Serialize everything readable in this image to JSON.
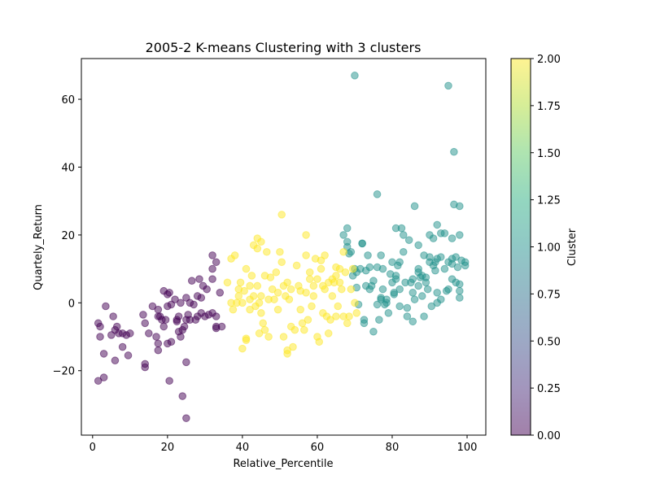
{
  "chart_data": {
    "type": "scatter",
    "title": "2005-2 K-means Clustering with 3 clusters",
    "xlabel": "Relative_Percentile",
    "ylabel": "Quartely_Return",
    "xlim": [
      -3,
      105
    ],
    "ylim": [
      -39,
      72
    ],
    "x_ticks": [
      0,
      20,
      40,
      60,
      80,
      100
    ],
    "x_tick_labels": [
      "0",
      "20",
      "40",
      "60",
      "80",
      "100"
    ],
    "y_ticks": [
      -20,
      0,
      20,
      40,
      60
    ],
    "y_tick_labels": [
      "−20",
      "0",
      "20",
      "40",
      "60"
    ],
    "grid": false,
    "marker_alpha": 0.5,
    "colorbar": {
      "label": "Cluster",
      "range": [
        0,
        2
      ],
      "ticks": [
        0,
        0.25,
        0.5,
        0.75,
        1.0,
        1.25,
        1.5,
        1.75,
        2.0
      ],
      "tick_labels": [
        "0.00",
        "0.25",
        "0.50",
        "0.75",
        "1.00",
        "1.25",
        "1.50",
        "1.75",
        "2.00"
      ],
      "colormap": "viridis",
      "colors": [
        "#440154",
        "#3b528b",
        "#21918c",
        "#5ec962",
        "#fde725"
      ]
    },
    "series": [
      {
        "cluster": 0,
        "color": "#440154",
        "points": [
          [
            1.5,
            -23
          ],
          [
            2,
            -10
          ],
          [
            1.5,
            -6
          ],
          [
            2,
            -7
          ],
          [
            3,
            -22
          ],
          [
            3,
            -15
          ],
          [
            3.5,
            -1
          ],
          [
            5,
            -9.5
          ],
          [
            5.5,
            -4
          ],
          [
            6,
            -17
          ],
          [
            6,
            -8
          ],
          [
            6.5,
            -7
          ],
          [
            7,
            -9
          ],
          [
            8,
            -13
          ],
          [
            8,
            -9
          ],
          [
            9,
            -9.5
          ],
          [
            9.5,
            -15.5
          ],
          [
            10,
            -9
          ],
          [
            13.5,
            -3.5
          ],
          [
            14,
            -18
          ],
          [
            14,
            -19
          ],
          [
            14,
            -6
          ],
          [
            15,
            -9
          ],
          [
            16,
            -1
          ],
          [
            17,
            -10
          ],
          [
            17.5,
            -14
          ],
          [
            17.5,
            -12
          ],
          [
            17.5,
            -4
          ],
          [
            17.5,
            -2
          ],
          [
            18,
            -4
          ],
          [
            18.5,
            -5
          ],
          [
            19,
            -7
          ],
          [
            19,
            3.5
          ],
          [
            19.5,
            -5
          ],
          [
            20,
            -12
          ],
          [
            20,
            -1
          ],
          [
            20,
            2.5
          ],
          [
            20.5,
            3
          ],
          [
            20.5,
            -23
          ],
          [
            21,
            -11.5
          ],
          [
            21,
            -0.5
          ],
          [
            22,
            1
          ],
          [
            22.5,
            -5
          ],
          [
            22.5,
            -5.5
          ],
          [
            23,
            -4
          ],
          [
            23,
            -8.5
          ],
          [
            23.5,
            0
          ],
          [
            23.5,
            -10
          ],
          [
            24,
            -27.5
          ],
          [
            24,
            -8
          ],
          [
            24.5,
            -7
          ],
          [
            25,
            -34
          ],
          [
            25,
            -17.5
          ],
          [
            25,
            -5
          ],
          [
            25,
            1.5
          ],
          [
            25.5,
            -3.5
          ],
          [
            26,
            -5
          ],
          [
            26,
            0
          ],
          [
            26.5,
            6.5
          ],
          [
            27,
            -0.5
          ],
          [
            27.5,
            -5
          ],
          [
            28,
            2
          ],
          [
            28,
            -4
          ],
          [
            28.5,
            7
          ],
          [
            29,
            -3
          ],
          [
            29,
            1.5
          ],
          [
            29.5,
            5
          ],
          [
            30,
            -4
          ],
          [
            30.5,
            4
          ],
          [
            31,
            -3.5
          ],
          [
            32,
            -3
          ],
          [
            32,
            7
          ],
          [
            32,
            10
          ],
          [
            32,
            14
          ],
          [
            33,
            -4
          ],
          [
            33,
            12
          ],
          [
            33,
            -7
          ],
          [
            33,
            -7.5
          ],
          [
            34,
            3
          ],
          [
            34.5,
            -7
          ]
        ]
      },
      {
        "cluster": 1,
        "color": "#21918c",
        "points": [
          [
            67,
            20
          ],
          [
            68,
            22
          ],
          [
            68,
            18
          ],
          [
            68,
            16.5
          ],
          [
            68.5,
            14.5
          ],
          [
            69,
            15
          ],
          [
            69.5,
            8
          ],
          [
            70,
            67
          ],
          [
            70,
            10
          ],
          [
            70.5,
            9
          ],
          [
            70.5,
            4.5
          ],
          [
            71,
            -0.5
          ],
          [
            71.5,
            10
          ],
          [
            72,
            17.5
          ],
          [
            72,
            17.5
          ],
          [
            72.5,
            -5
          ],
          [
            72.5,
            -6
          ],
          [
            73,
            5
          ],
          [
            73,
            9.5
          ],
          [
            73.5,
            14
          ],
          [
            74,
            10.5
          ],
          [
            74,
            4
          ],
          [
            74.5,
            5
          ],
          [
            75,
            -8.5
          ],
          [
            75,
            6.5
          ],
          [
            76,
            32
          ],
          [
            76,
            10.5
          ],
          [
            76,
            -0.5
          ],
          [
            76.5,
            -5
          ],
          [
            77,
            1
          ],
          [
            77,
            1.5
          ],
          [
            77,
            14
          ],
          [
            77.5,
            10
          ],
          [
            77.5,
            4
          ],
          [
            78,
            -0.5
          ],
          [
            78.5,
            0
          ],
          [
            78.5,
            1
          ],
          [
            79,
            -3
          ],
          [
            79.5,
            8.5
          ],
          [
            80,
            12
          ],
          [
            80,
            6
          ],
          [
            80.5,
            2.5
          ],
          [
            80.5,
            3
          ],
          [
            81,
            22
          ],
          [
            81,
            7
          ],
          [
            81,
            8
          ],
          [
            81.5,
            11
          ],
          [
            82,
            12
          ],
          [
            82,
            4
          ],
          [
            82,
            -1
          ],
          [
            82.5,
            22
          ],
          [
            83,
            20
          ],
          [
            83,
            15
          ],
          [
            83.5,
            6
          ],
          [
            84,
            -1.5
          ],
          [
            84,
            -4
          ],
          [
            84.5,
            18.5
          ],
          [
            85,
            6
          ],
          [
            85.5,
            7
          ],
          [
            85.5,
            3
          ],
          [
            85.5,
            -5.5
          ],
          [
            86,
            28.5
          ],
          [
            86,
            1
          ],
          [
            87,
            17
          ],
          [
            87,
            10
          ],
          [
            87,
            9
          ],
          [
            87,
            5
          ],
          [
            87.5,
            7.5
          ],
          [
            88,
            2
          ],
          [
            88,
            8
          ],
          [
            88.5,
            -4
          ],
          [
            88.5,
            14
          ],
          [
            89,
            6
          ],
          [
            89,
            7.5
          ],
          [
            89.5,
            4
          ],
          [
            90,
            20
          ],
          [
            90,
            12
          ],
          [
            90,
            13.5
          ],
          [
            90.5,
            -1
          ],
          [
            91,
            11
          ],
          [
            91,
            19
          ],
          [
            91.5,
            12
          ],
          [
            91.5,
            9.5
          ],
          [
            92,
            3
          ],
          [
            92,
            0
          ],
          [
            92,
            23
          ],
          [
            92,
            13
          ],
          [
            93,
            1
          ],
          [
            93,
            20.5
          ],
          [
            93,
            13.5
          ],
          [
            94,
            10
          ],
          [
            94,
            20.5
          ],
          [
            94.5,
            3.5
          ],
          [
            95,
            12
          ],
          [
            95,
            64
          ],
          [
            95,
            4
          ],
          [
            96,
            7
          ],
          [
            96,
            13
          ],
          [
            96,
            11.5
          ],
          [
            96,
            19
          ],
          [
            96.5,
            44.5
          ],
          [
            96.5,
            29
          ],
          [
            97,
            6
          ],
          [
            97,
            13.5
          ],
          [
            97.5,
            10.5
          ],
          [
            98,
            28.5
          ],
          [
            98,
            20
          ],
          [
            98,
            5.5
          ],
          [
            98,
            1.5
          ],
          [
            98,
            3.5
          ],
          [
            98.5,
            12.5
          ],
          [
            99.5,
            11
          ],
          [
            99.5,
            12
          ]
        ]
      },
      {
        "cluster": 2,
        "color": "#fde725",
        "points": [
          [
            36,
            6
          ],
          [
            37,
            0
          ],
          [
            37,
            13
          ],
          [
            37.5,
            -2
          ],
          [
            38,
            14
          ],
          [
            38.5,
            0
          ],
          [
            39,
            2
          ],
          [
            39,
            4
          ],
          [
            39.5,
            6
          ],
          [
            40,
            -13.5
          ],
          [
            40,
            0
          ],
          [
            40.5,
            3.5
          ],
          [
            41,
            -10.5
          ],
          [
            41,
            -11
          ],
          [
            41,
            10
          ],
          [
            42,
            1
          ],
          [
            42,
            5
          ],
          [
            42,
            -2
          ],
          [
            42.5,
            8
          ],
          [
            43,
            17
          ],
          [
            43,
            2
          ],
          [
            43.5,
            -1
          ],
          [
            44,
            19
          ],
          [
            44,
            16
          ],
          [
            44,
            5
          ],
          [
            44.5,
            -9
          ],
          [
            44.5,
            0
          ],
          [
            45,
            18
          ],
          [
            45,
            2
          ],
          [
            45,
            -3
          ],
          [
            45.5,
            -6
          ],
          [
            46,
            -8
          ],
          [
            46,
            8
          ],
          [
            46.5,
            15
          ],
          [
            47,
            1
          ],
          [
            47,
            -10
          ],
          [
            47.5,
            7.5
          ],
          [
            48,
            4
          ],
          [
            48.5,
            1
          ],
          [
            49,
            9
          ],
          [
            49.5,
            -2
          ],
          [
            49.5,
            3
          ],
          [
            50,
            15
          ],
          [
            50.5,
            26
          ],
          [
            50.5,
            12
          ],
          [
            51,
            5
          ],
          [
            51,
            -10
          ],
          [
            51.5,
            2
          ],
          [
            52,
            6
          ],
          [
            52,
            -14
          ],
          [
            52,
            -15
          ],
          [
            52.5,
            1
          ],
          [
            53,
            4
          ],
          [
            53,
            -7
          ],
          [
            53.5,
            -13
          ],
          [
            54,
            -8
          ],
          [
            54.5,
            11
          ],
          [
            55,
            5
          ],
          [
            55.5,
            3.5
          ],
          [
            55.5,
            -2
          ],
          [
            56,
            -6
          ],
          [
            56.5,
            -8
          ],
          [
            57,
            14
          ],
          [
            57,
            3
          ],
          [
            57,
            20
          ],
          [
            57.5,
            -5
          ],
          [
            58,
            9
          ],
          [
            58,
            7
          ],
          [
            58.5,
            -1
          ],
          [
            59,
            5
          ],
          [
            59,
            2
          ],
          [
            59.5,
            13
          ],
          [
            60,
            7
          ],
          [
            60,
            -10
          ],
          [
            60.5,
            -11.5
          ],
          [
            61,
            10
          ],
          [
            61,
            12.5
          ],
          [
            61.5,
            5
          ],
          [
            61.5,
            -3
          ],
          [
            62,
            14
          ],
          [
            62,
            4
          ],
          [
            62.5,
            -4
          ],
          [
            63,
            6
          ],
          [
            63,
            -9
          ],
          [
            63.5,
            -5
          ],
          [
            64,
            7
          ],
          [
            64,
            2
          ],
          [
            64.5,
            6
          ],
          [
            65,
            8
          ],
          [
            65,
            10.5
          ],
          [
            65,
            -4
          ],
          [
            65.5,
            -1
          ],
          [
            66,
            10
          ],
          [
            66,
            6
          ],
          [
            66.5,
            4
          ],
          [
            67,
            -4
          ],
          [
            67,
            15
          ],
          [
            67.5,
            9
          ],
          [
            68,
            -6
          ],
          [
            68.5,
            -4
          ],
          [
            69,
            4
          ],
          [
            69.5,
            10
          ],
          [
            70,
            0
          ],
          [
            70.5,
            -3
          ]
        ]
      }
    ]
  }
}
